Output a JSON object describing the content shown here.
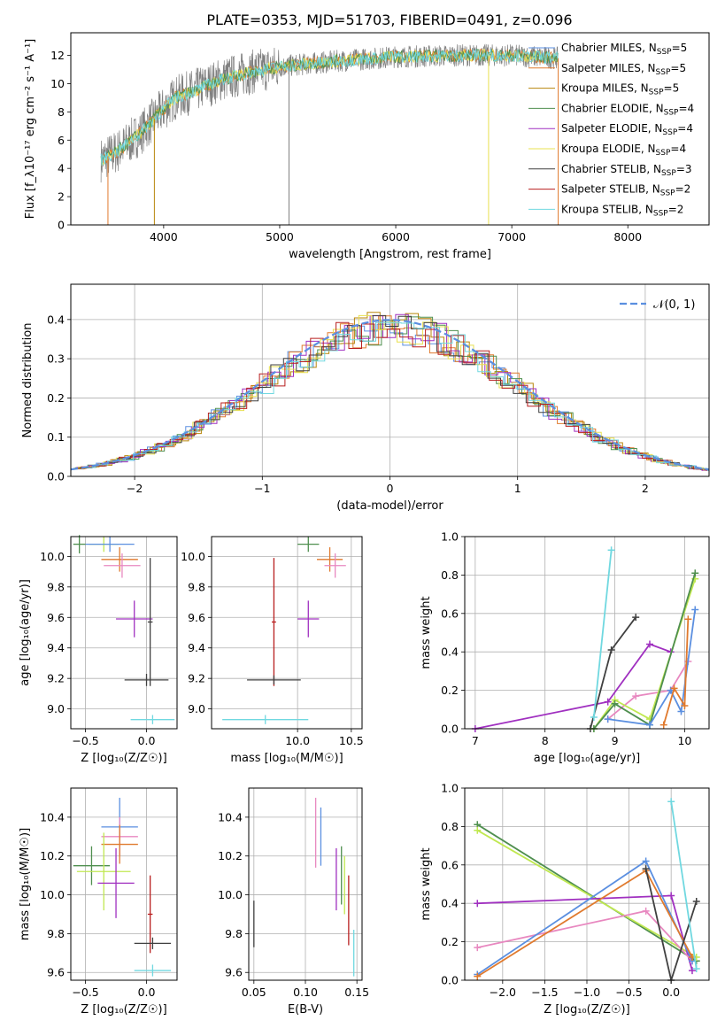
{
  "title": "PLATE=0353, MJD=51703, FIBERID=0491, z=0.096",
  "colors": {
    "chabrier_miles": "#5b8fe0",
    "salpeter_miles": "#e07a2e",
    "kroupa_miles": "#b8860b",
    "chabrier_elodie": "#4f8f4f",
    "salpeter_elodie": "#a030c0",
    "kroupa_elodie": "#e8e050",
    "chabrier_stelib": "#404040",
    "salpeter_stelib": "#b81f1f",
    "kroupa_stelib": "#70d8e0",
    "pink": "#e888c0",
    "lime": "#c0e850",
    "grey": "#808080",
    "normal": "#5b8fe0"
  },
  "chart_data": [
    {
      "id": "spectrum",
      "type": "line",
      "xlabel": "wavelength [Angstrom, rest frame]",
      "ylabel": "Flux [f_λ10⁻¹⁷ erg cm⁻² s⁻¹ A⁻¹]",
      "xlim": [
        3200,
        8700
      ],
      "ylim": [
        0,
        13.6
      ],
      "xticks": [
        4000,
        5000,
        6000,
        7000,
        8000
      ],
      "yticks": [
        0,
        2,
        4,
        6,
        8,
        10,
        12
      ],
      "continuum": {
        "x": [
          3460,
          3600,
          3800,
          3950,
          4100,
          4300,
          4500,
          4800,
          5000,
          5500,
          6000,
          6500,
          7000,
          7400
        ],
        "y": [
          4.6,
          5.2,
          6.5,
          7.8,
          9.0,
          9.6,
          10.3,
          10.9,
          11.2,
          11.6,
          11.9,
          12.0,
          12.0,
          11.8
        ]
      },
      "legend": [
        {
          "label": "Chabrier MILES, N",
          "sub": "SSP",
          "suffix": "=5",
          "color": "chabrier_miles"
        },
        {
          "label": "Salpeter MILES, N",
          "sub": "SSP",
          "suffix": "=5",
          "color": "salpeter_miles"
        },
        {
          "label": "Kroupa MILES, N",
          "sub": "SSP",
          "suffix": "=5",
          "color": "kroupa_miles"
        },
        {
          "label": "Chabrier ELODIE, N",
          "sub": "SSP",
          "suffix": "=4",
          "color": "chabrier_elodie"
        },
        {
          "label": "Salpeter ELODIE, N",
          "sub": "SSP",
          "suffix": "=4",
          "color": "salpeter_elodie"
        },
        {
          "label": "Kroupa ELODIE, N",
          "sub": "SSP",
          "suffix": "=4",
          "color": "kroupa_elodie"
        },
        {
          "label": "Chabrier STELIB, N",
          "sub": "SSP",
          "suffix": "=3",
          "color": "chabrier_stelib"
        },
        {
          "label": "Salpeter STELIB, N",
          "sub": "SSP",
          "suffix": "=2",
          "color": "salpeter_stelib"
        },
        {
          "label": "Kroupa STELIB, N",
          "sub": "SSP",
          "suffix": "=2",
          "color": "kroupa_stelib"
        }
      ],
      "grid": false
    },
    {
      "id": "residuals",
      "type": "line",
      "xlabel": "(data-model)/error",
      "ylabel": "Normed distribution",
      "xlim": [
        -2.5,
        2.5
      ],
      "ylim": [
        0,
        0.49
      ],
      "xticks": [
        -2,
        -1,
        0,
        1,
        2
      ],
      "xtick_labels": [
        "−2",
        "−1",
        "0",
        "1",
        "2"
      ],
      "yticks": [
        0.0,
        0.1,
        0.2,
        0.3,
        0.4
      ],
      "ytick_labels": [
        "0.0",
        "0.1",
        "0.2",
        "0.3",
        "0.4"
      ],
      "legend": [
        {
          "label": "𝒩(0, 1)",
          "color": "normal"
        }
      ],
      "grid": true
    },
    {
      "id": "age_vs_Z",
      "type": "scatter",
      "xlabel": "Z [log₁₀(Z/Z☉)]",
      "ylabel": "age  [log₁₀(age/yr)]",
      "xlim": [
        -0.62,
        0.25
      ],
      "ylim": [
        8.87,
        10.13
      ],
      "xticks": [
        -0.5,
        0.0
      ],
      "xtick_labels": [
        "−0.5",
        "0.0"
      ],
      "yticks": [
        9.0,
        9.2,
        9.4,
        9.6,
        9.8,
        10.0
      ],
      "ytick_labels": [
        "9.0",
        "9.2",
        "9.4",
        "9.6",
        "9.8",
        "10.0"
      ],
      "points": [
        {
          "x": -0.55,
          "y": 10.08,
          "xerr": 0.05,
          "yerr": 0.06,
          "color": "chabrier_elodie"
        },
        {
          "x": -0.35,
          "y": 10.08,
          "xerr": 0.12,
          "yerr": 0.05,
          "color": "lime"
        },
        {
          "x": -0.3,
          "y": 10.08,
          "xerr": 0.2,
          "yerr": 0.05,
          "color": "chabrier_miles"
        },
        {
          "x": -0.22,
          "y": 9.98,
          "xerr": 0.15,
          "yerr": 0.08,
          "color": "salpeter_miles"
        },
        {
          "x": -0.2,
          "y": 9.94,
          "xerr": 0.15,
          "yerr": 0.08,
          "color": "pink"
        },
        {
          "x": -0.1,
          "y": 9.59,
          "xerr": 0.15,
          "yerr": 0.12,
          "color": "salpeter_elodie"
        },
        {
          "x": 0.03,
          "y": 9.57,
          "xerr": 0.02,
          "yerr": 0.42,
          "color": "chabrier_stelib"
        },
        {
          "x": 0.0,
          "y": 9.19,
          "xerr": 0.18,
          "yerr": 0.04,
          "color": "chabrier_stelib"
        },
        {
          "x": 0.05,
          "y": 8.93,
          "xerr": 0.18,
          "yerr": 0.03,
          "color": "kroupa_stelib"
        }
      ]
    },
    {
      "id": "age_vs_mass",
      "type": "scatter",
      "xlabel": "mass [log₁₀(M/M☉)]",
      "ylabel": "",
      "xlim": [
        9.2,
        10.6
      ],
      "ylim": [
        8.87,
        10.13
      ],
      "xticks": [
        10.0,
        10.5
      ],
      "xtick_labels": [
        "10.0",
        "10.5"
      ],
      "yticks": [
        9.0,
        9.2,
        9.4,
        9.6,
        9.8,
        10.0
      ],
      "ytick_labels": [
        "9.0",
        "9.2",
        "9.4",
        "9.6",
        "9.8",
        "10.0"
      ],
      "points": [
        {
          "x": 10.1,
          "y": 10.08,
          "xerr": 0.1,
          "yerr": 0.05,
          "color": "chabrier_elodie"
        },
        {
          "x": 10.3,
          "y": 9.98,
          "xerr": 0.12,
          "yerr": 0.08,
          "color": "salpeter_miles"
        },
        {
          "x": 10.35,
          "y": 9.94,
          "xerr": 0.1,
          "yerr": 0.08,
          "color": "pink"
        },
        {
          "x": 10.1,
          "y": 9.59,
          "xerr": 0.1,
          "yerr": 0.12,
          "color": "salpeter_elodie"
        },
        {
          "x": 9.78,
          "y": 9.57,
          "xerr": 0.02,
          "yerr": 0.42,
          "color": "salpeter_stelib"
        },
        {
          "x": 9.78,
          "y": 9.19,
          "xerr": 0.25,
          "yerr": 0.03,
          "color": "chabrier_stelib"
        },
        {
          "x": 9.7,
          "y": 8.93,
          "xerr": 0.4,
          "yerr": 0.03,
          "color": "kroupa_stelib"
        }
      ]
    },
    {
      "id": "weight_vs_age",
      "type": "line",
      "xlabel": "age  [log₁₀(age/yr)]",
      "ylabel": "mass weight",
      "xlim": [
        6.85,
        10.35
      ],
      "ylim": [
        0,
        1.0
      ],
      "xticks": [
        7,
        8,
        9,
        10
      ],
      "xtick_labels": [
        "7",
        "8",
        "9",
        "10"
      ],
      "yticks": [
        0.0,
        0.2,
        0.4,
        0.6,
        0.8,
        1.0
      ],
      "ytick_labels": [
        "0.0",
        "0.2",
        "0.4",
        "0.6",
        "0.8",
        "1.0"
      ],
      "series": [
        {
          "color": "salpeter_elodie",
          "x": [
            7.0,
            8.9,
            9.5,
            9.8
          ],
          "y": [
            0.0,
            0.14,
            0.44,
            0.4
          ]
        },
        {
          "color": "pink",
          "x": [
            8.9,
            9.3,
            9.8,
            10.05
          ],
          "y": [
            0.05,
            0.17,
            0.2,
            0.35
          ]
        },
        {
          "color": "chabrier_stelib",
          "x": [
            8.65,
            8.95,
            9.3
          ],
          "y": [
            0.0,
            0.41,
            0.58
          ]
        },
        {
          "color": "kroupa_stelib",
          "x": [
            8.7,
            8.95
          ],
          "y": [
            0.06,
            0.93
          ]
        },
        {
          "color": "lime",
          "x": [
            8.7,
            9.0,
            9.5,
            10.15
          ],
          "y": [
            0.0,
            0.15,
            0.05,
            0.78
          ]
        },
        {
          "color": "chabrier_elodie",
          "x": [
            8.7,
            9.0,
            9.5,
            10.15
          ],
          "y": [
            0.0,
            0.13,
            0.02,
            0.81
          ]
        },
        {
          "color": "chabrier_miles",
          "x": [
            8.9,
            9.5,
            9.8,
            9.95,
            10.15
          ],
          "y": [
            0.05,
            0.02,
            0.2,
            0.09,
            0.62
          ]
        },
        {
          "color": "salpeter_miles",
          "x": [
            9.7,
            9.85,
            10.0,
            10.05
          ],
          "y": [
            0.02,
            0.21,
            0.12,
            0.57
          ]
        }
      ]
    },
    {
      "id": "mass_vs_Z",
      "type": "scatter",
      "xlabel": "Z [log₁₀(Z/Z☉)]",
      "ylabel": "mass [log₁₀(M/M☉)]",
      "xlim": [
        -0.62,
        0.25
      ],
      "ylim": [
        9.56,
        10.55
      ],
      "xticks": [
        -0.5,
        0.0
      ],
      "xtick_labels": [
        "−0.5",
        "0.0"
      ],
      "yticks": [
        9.6,
        9.8,
        10.0,
        10.2,
        10.4
      ],
      "ytick_labels": [
        "9.6",
        "9.8",
        "10.0",
        "10.2",
        "10.4"
      ],
      "points": [
        {
          "x": -0.22,
          "y": 10.35,
          "xerr": 0.15,
          "yerr": 0.15,
          "color": "chabrier_miles"
        },
        {
          "x": -0.22,
          "y": 10.3,
          "xerr": 0.15,
          "yerr": 0.1,
          "color": "pink"
        },
        {
          "x": -0.22,
          "y": 10.26,
          "xerr": 0.15,
          "yerr": 0.1,
          "color": "salpeter_miles"
        },
        {
          "x": -0.45,
          "y": 10.15,
          "xerr": 0.15,
          "yerr": 0.1,
          "color": "chabrier_elodie"
        },
        {
          "x": -0.35,
          "y": 10.12,
          "xerr": 0.22,
          "yerr": 0.2,
          "color": "lime"
        },
        {
          "x": -0.25,
          "y": 10.06,
          "xerr": 0.15,
          "yerr": 0.18,
          "color": "salpeter_elodie"
        },
        {
          "x": 0.03,
          "y": 9.9,
          "xerr": 0.02,
          "yerr": 0.2,
          "color": "salpeter_stelib"
        },
        {
          "x": 0.05,
          "y": 9.75,
          "xerr": 0.15,
          "yerr": 0.03,
          "color": "chabrier_stelib"
        },
        {
          "x": 0.05,
          "y": 9.61,
          "xerr": 0.15,
          "yerr": 0.03,
          "color": "kroupa_stelib"
        }
      ]
    },
    {
      "id": "mass_vs_EBV",
      "type": "scatter",
      "xlabel": "E(B-V)",
      "ylabel": "",
      "xlim": [
        0.045,
        0.155
      ],
      "ylim": [
        9.56,
        10.55
      ],
      "xticks": [
        0.05,
        0.1,
        0.15
      ],
      "xtick_labels": [
        "0.05",
        "0.10",
        "0.15"
      ],
      "yticks": [
        9.6,
        9.8,
        10.0,
        10.2,
        10.4
      ],
      "ytick_labels": [
        "9.6",
        "9.8",
        "10.0",
        "10.2",
        "10.4"
      ],
      "points": [
        {
          "x": 0.05,
          "y": 9.85,
          "xerr": 0,
          "yerr": 0.12,
          "color": "chabrier_stelib"
        },
        {
          "x": 0.11,
          "y": 10.32,
          "xerr": 0,
          "yerr": 0.18,
          "color": "pink"
        },
        {
          "x": 0.115,
          "y": 10.3,
          "xerr": 0,
          "yerr": 0.15,
          "color": "chabrier_miles"
        },
        {
          "x": 0.13,
          "y": 10.08,
          "xerr": 0,
          "yerr": 0.16,
          "color": "salpeter_elodie"
        },
        {
          "x": 0.135,
          "y": 10.1,
          "xerr": 0,
          "yerr": 0.15,
          "color": "chabrier_elodie"
        },
        {
          "x": 0.138,
          "y": 10.05,
          "xerr": 0,
          "yerr": 0.15,
          "color": "lime"
        },
        {
          "x": 0.142,
          "y": 9.92,
          "xerr": 0,
          "yerr": 0.18,
          "color": "salpeter_stelib"
        },
        {
          "x": 0.147,
          "y": 9.7,
          "xerr": 0,
          "yerr": 0.12,
          "color": "kroupa_stelib"
        }
      ]
    },
    {
      "id": "weight_vs_Z",
      "type": "line",
      "xlabel": "Z [log₁₀(Z/Z☉)]",
      "ylabel": "mass weight",
      "xlim": [
        -2.45,
        0.45
      ],
      "ylim": [
        0,
        1.0
      ],
      "xticks": [
        -2.0,
        -1.5,
        -1.0,
        -0.5,
        0.0
      ],
      "xtick_labels": [
        "−2.0",
        "−1.5",
        "−1.0",
        "−0.5",
        "0.0"
      ],
      "yticks": [
        0.0,
        0.2,
        0.4,
        0.6,
        0.8,
        1.0
      ],
      "ytick_labels": [
        "0.0",
        "0.2",
        "0.4",
        "0.6",
        "0.8",
        "1.0"
      ],
      "series": [
        {
          "color": "chabrier_elodie",
          "x": [
            -2.3,
            0.3
          ],
          "y": [
            0.81,
            0.1
          ]
        },
        {
          "color": "lime",
          "x": [
            -2.3,
            0.3
          ],
          "y": [
            0.78,
            0.12
          ]
        },
        {
          "color": "salpeter_elodie",
          "x": [
            -2.3,
            0.0,
            0.25
          ],
          "y": [
            0.4,
            0.44,
            0.05
          ]
        },
        {
          "color": "pink",
          "x": [
            -2.3,
            -0.3,
            0.25
          ],
          "y": [
            0.17,
            0.36,
            0.1
          ]
        },
        {
          "color": "chabrier_miles",
          "x": [
            -2.3,
            -0.3,
            0.25
          ],
          "y": [
            0.03,
            0.62,
            0.1
          ]
        },
        {
          "color": "salpeter_miles",
          "x": [
            -2.3,
            -0.3,
            0.25
          ],
          "y": [
            0.02,
            0.57,
            0.12
          ]
        },
        {
          "color": "chabrier_stelib",
          "x": [
            -0.3,
            0.0,
            0.3
          ],
          "y": [
            0.58,
            0.0,
            0.41
          ]
        },
        {
          "color": "kroupa_stelib",
          "x": [
            0.0,
            0.3
          ],
          "y": [
            0.93,
            0.06
          ]
        }
      ]
    }
  ]
}
